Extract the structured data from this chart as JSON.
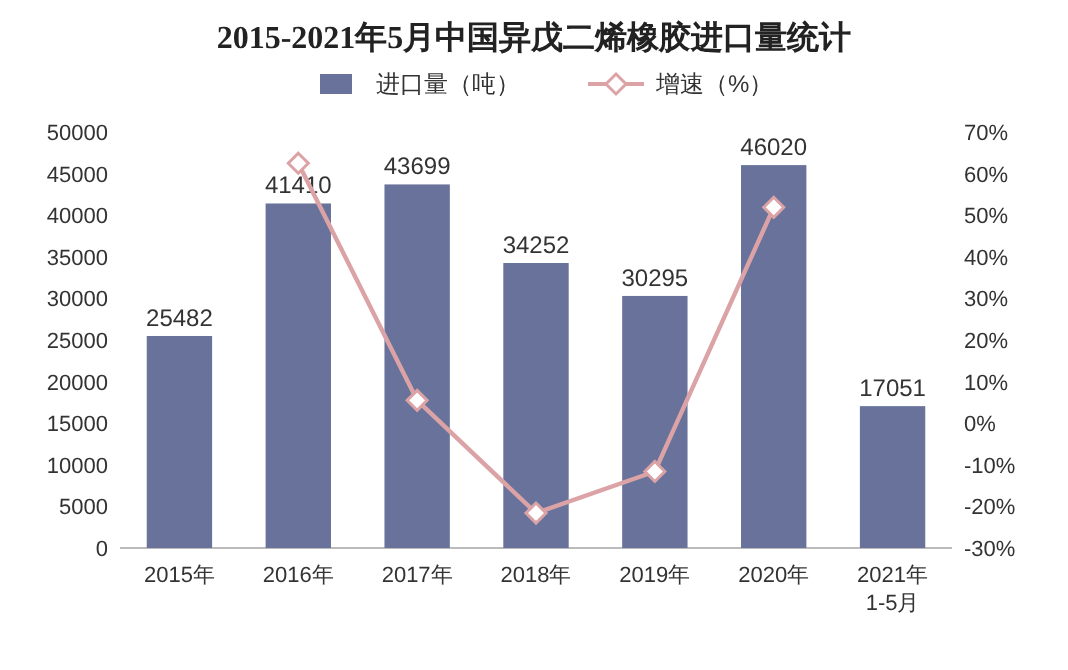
{
  "chart_data": {
    "type": "bar",
    "title": "2015-2021年5月中国异戊二烯橡胶进口量统计",
    "categories": [
      "2015年",
      "2016年",
      "2017年",
      "2018年",
      "2019年",
      "2020年",
      "2021年\n1-5月"
    ],
    "series": [
      {
        "name": "进口量（吨）",
        "color": "#68729a",
        "values": [
          25482,
          41410,
          43699,
          34252,
          30295,
          46020,
          17051
        ],
        "value_labels": [
          "25482",
          "41410",
          "43699",
          "34252",
          "30295",
          "46020",
          "17051"
        ]
      },
      {
        "name": "增速（%）",
        "type": "line",
        "axis": "y2",
        "color": "#dba3a6",
        "marker": "diamond",
        "values": [
          null,
          62.5,
          5.5,
          -21.6,
          -11.6,
          51.9,
          null
        ]
      }
    ],
    "ylim": [
      0,
      50000
    ],
    "yticks": [
      0,
      5000,
      10000,
      15000,
      20000,
      25000,
      30000,
      35000,
      40000,
      45000,
      50000
    ],
    "y2lim": [
      -30,
      70
    ],
    "y2ticks": [
      {
        "value": -30,
        "label": "-30%"
      },
      {
        "value": -20,
        "label": "-20%"
      },
      {
        "value": -10,
        "label": "-10%"
      },
      {
        "value": 0,
        "label": "0%"
      },
      {
        "value": 10,
        "label": "10%"
      },
      {
        "value": 20,
        "label": "20%"
      },
      {
        "value": 30,
        "label": "30%"
      },
      {
        "value": 40,
        "label": "40%"
      },
      {
        "value": 50,
        "label": "50%"
      },
      {
        "value": 60,
        "label": "60%"
      },
      {
        "value": 70,
        "label": "70%"
      }
    ],
    "legend": "top"
  }
}
